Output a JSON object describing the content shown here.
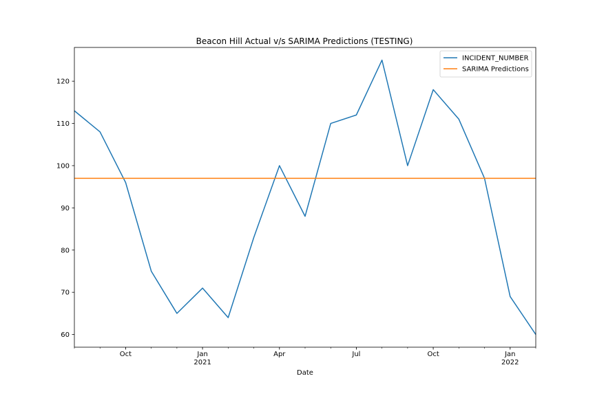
{
  "chart_data": {
    "type": "line",
    "title": "Beacon Hill Actual v/s SARIMA Predictions (TESTING)",
    "xlabel": "Date",
    "ylabel": "",
    "x": [
      "2020-08",
      "2020-09",
      "2020-10",
      "2020-11",
      "2020-12",
      "2021-01",
      "2021-02",
      "2021-03",
      "2021-04",
      "2021-05",
      "2021-06",
      "2021-07",
      "2021-08",
      "2021-09",
      "2021-10",
      "2021-11",
      "2021-12",
      "2022-01",
      "2022-02"
    ],
    "xlim": [
      "2020-08",
      "2022-02"
    ],
    "ylim": [
      57,
      128
    ],
    "x_ticks": [
      {
        "pos": "2020-10",
        "label": "Oct",
        "sublabel": ""
      },
      {
        "pos": "2021-01",
        "label": "Jan",
        "sublabel": "2021"
      },
      {
        "pos": "2021-04",
        "label": "Apr",
        "sublabel": ""
      },
      {
        "pos": "2021-07",
        "label": "Jul",
        "sublabel": ""
      },
      {
        "pos": "2021-10",
        "label": "Oct",
        "sublabel": ""
      },
      {
        "pos": "2022-01",
        "label": "Jan",
        "sublabel": "2022"
      }
    ],
    "y_ticks": [
      60,
      70,
      80,
      90,
      100,
      110,
      120
    ],
    "grid": false,
    "legend_position": "top-right",
    "series": [
      {
        "name": "INCIDENT_NUMBER",
        "color": "#1f77b4",
        "values": [
          113,
          108,
          96,
          75,
          65,
          71,
          64,
          83,
          100,
          88,
          110,
          112,
          125,
          100,
          118,
          111,
          97,
          69,
          60
        ]
      },
      {
        "name": "SARIMA Predictions",
        "color": "#ff7f0e",
        "values": [
          97,
          97,
          97,
          97,
          97,
          97,
          97,
          97,
          97,
          97,
          97,
          97,
          97,
          97,
          97,
          97,
          97,
          97,
          97
        ]
      }
    ]
  }
}
